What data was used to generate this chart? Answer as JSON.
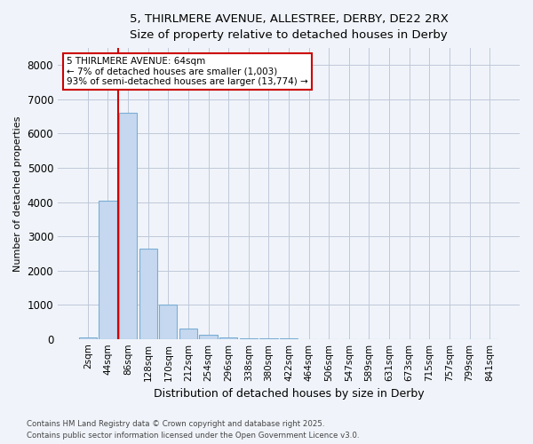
{
  "title_line1": "5, THIRLMERE AVENUE, ALLESTREE, DERBY, DE22 2RX",
  "title_line2": "Size of property relative to detached houses in Derby",
  "xlabel": "Distribution of detached houses by size in Derby",
  "ylabel": "Number of detached properties",
  "categories": [
    "2sqm",
    "44sqm",
    "86sqm",
    "128sqm",
    "170sqm",
    "212sqm",
    "254sqm",
    "296sqm",
    "338sqm",
    "380sqm",
    "422sqm",
    "464sqm",
    "506sqm",
    "547sqm",
    "589sqm",
    "631sqm",
    "673sqm",
    "715sqm",
    "757sqm",
    "799sqm",
    "841sqm"
  ],
  "values": [
    50,
    4050,
    6600,
    2650,
    1000,
    300,
    120,
    55,
    30,
    10,
    5,
    0,
    0,
    0,
    0,
    0,
    0,
    0,
    0,
    0,
    0
  ],
  "bar_color": "#c5d8ef",
  "bar_edge_color": "#7aadd4",
  "vline_color": "#cc0000",
  "vline_x": 1.5,
  "annotation_text": "5 THIRLMERE AVENUE: 64sqm\n← 7% of detached houses are smaller (1,003)\n93% of semi-detached houses are larger (13,774) →",
  "annotation_box_edge": "#cc0000",
  "annotation_box_face": "#ffffff",
  "ylim": [
    0,
    8500
  ],
  "yticks": [
    0,
    1000,
    2000,
    3000,
    4000,
    5000,
    6000,
    7000,
    8000
  ],
  "background_color": "#f0f4fa",
  "grid_color": "#c0c8d8",
  "footer_line1": "Contains HM Land Registry data © Crown copyright and database right 2025.",
  "footer_line2": "Contains public sector information licensed under the Open Government Licence v3.0."
}
